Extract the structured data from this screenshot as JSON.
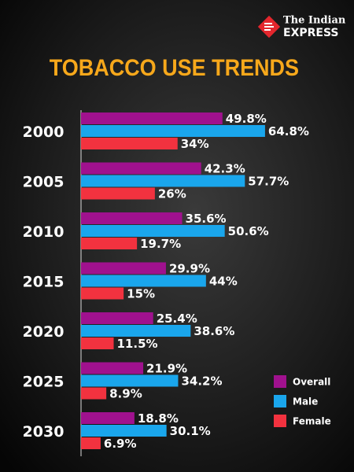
{
  "brand": {
    "line1": "The Indian",
    "line2": "EXPRESS"
  },
  "chart_data": {
    "type": "bar",
    "orientation": "horizontal",
    "title": "TOBACCO USE TRENDS",
    "categories": [
      "2000",
      "2005",
      "2010",
      "2015",
      "2020",
      "2025",
      "2030"
    ],
    "series": [
      {
        "name": "Overall",
        "color": "#a0118e",
        "values": [
          49.8,
          42.3,
          35.6,
          29.9,
          25.4,
          21.9,
          18.8
        ],
        "value_labels": [
          "49.8%",
          "42.3%",
          "35.6%",
          "29.9%",
          "25.4%",
          "21.9%",
          "18.8%"
        ]
      },
      {
        "name": "Male",
        "color": "#1aa6ec",
        "values": [
          64.8,
          57.7,
          50.6,
          44,
          38.6,
          34.2,
          30.1
        ],
        "value_labels": [
          "64.8%",
          "57.7%",
          "50.6%",
          "44%",
          "38.6%",
          "34.2%",
          "30.1%"
        ]
      },
      {
        "name": "Female",
        "color": "#f2323f",
        "values": [
          34,
          26,
          19.7,
          15,
          11.5,
          8.9,
          6.9
        ],
        "value_labels": [
          "34%",
          "26%",
          "19.7%",
          "15%",
          "11.5%",
          "8.9%",
          "6.9%"
        ]
      }
    ],
    "legend": "lower right"
  }
}
